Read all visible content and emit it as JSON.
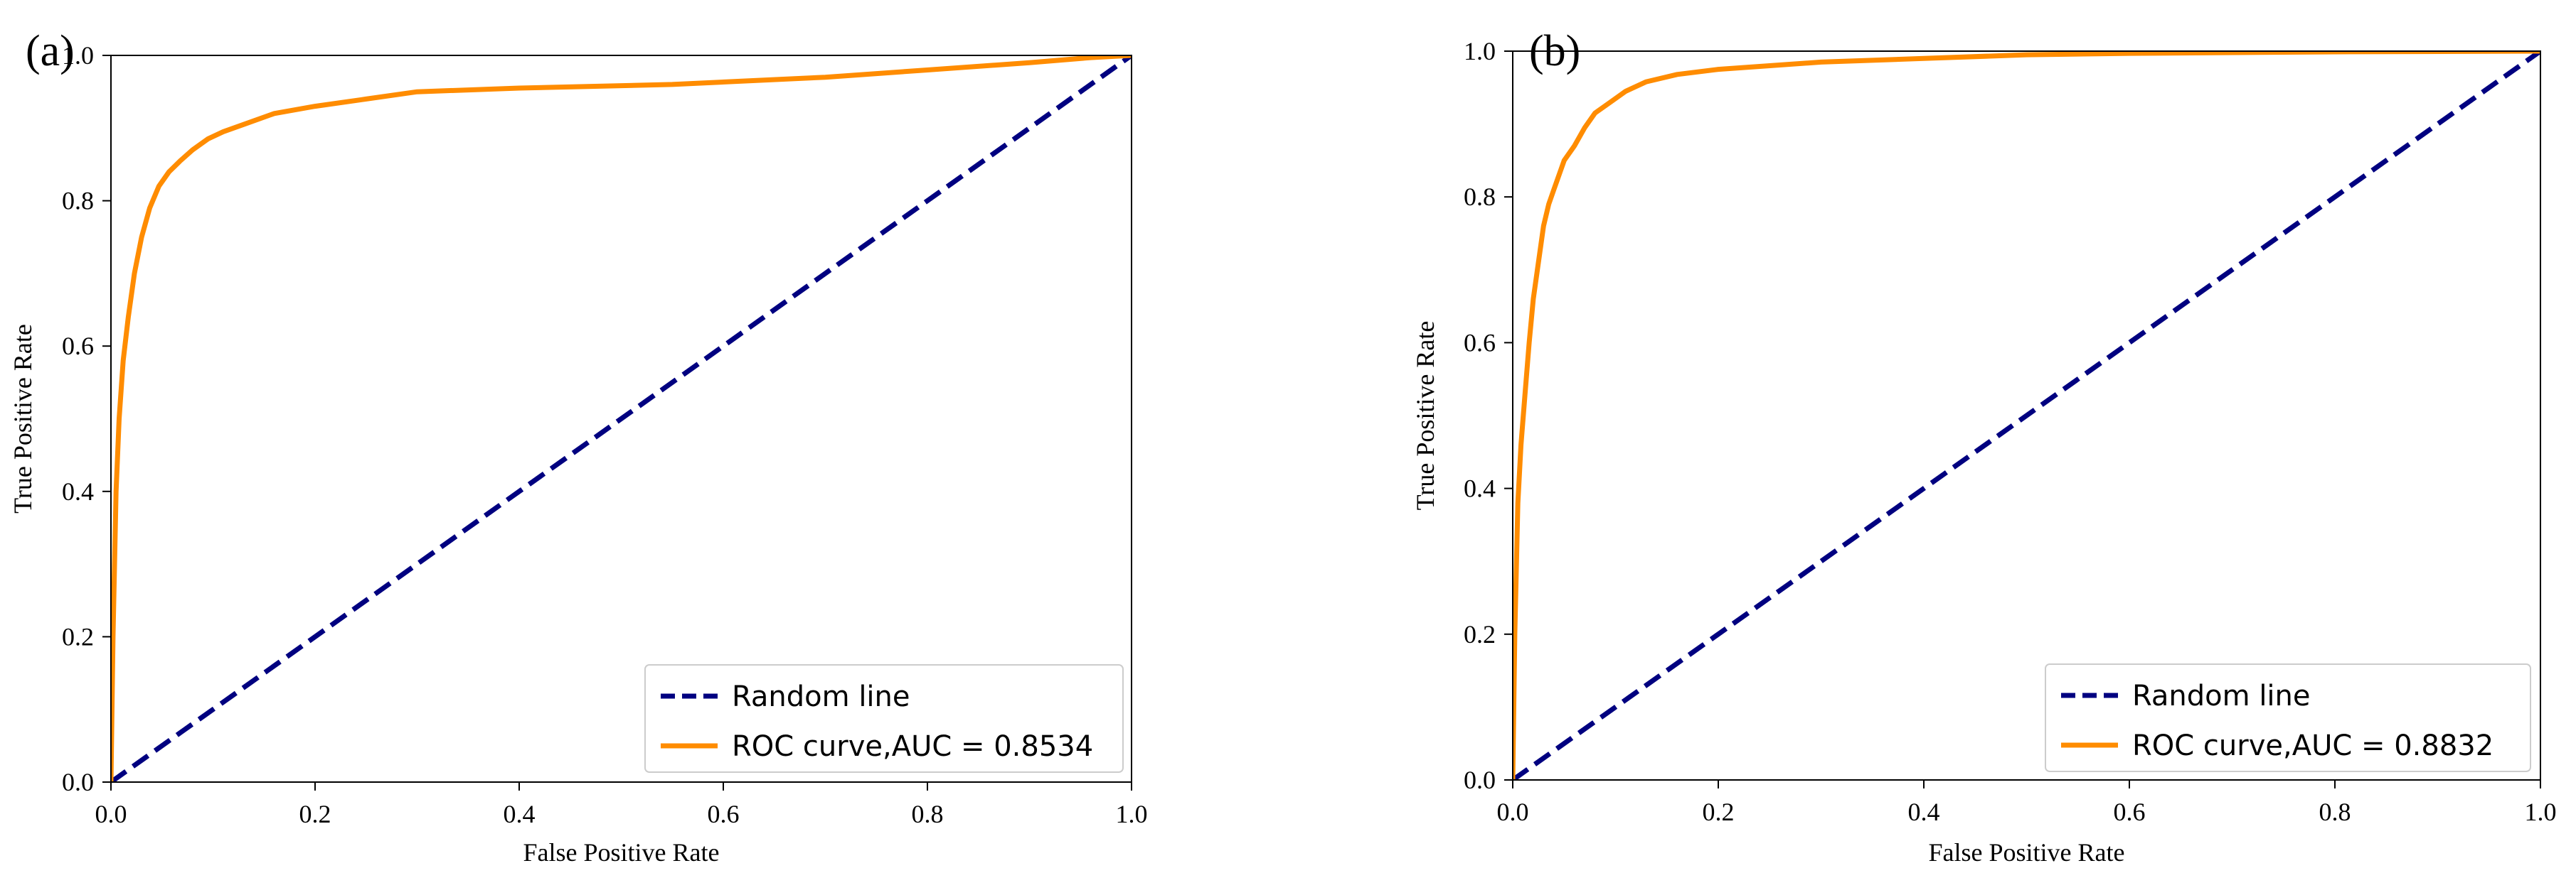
{
  "chart_data": [
    {
      "type": "line",
      "panel_label": "(a)",
      "title": "",
      "xlabel": "False Positive Rate",
      "ylabel": "True Positive Rate",
      "xlim": [
        0.0,
        1.0
      ],
      "ylim": [
        0.0,
        1.0
      ],
      "xticks": [
        0.0,
        0.2,
        0.4,
        0.6,
        0.8,
        1.0
      ],
      "yticks": [
        0.0,
        0.2,
        0.4,
        0.6,
        0.8,
        1.0
      ],
      "xtick_labels": [
        "0.0",
        "0.2",
        "0.4",
        "0.6",
        "0.8",
        "1.0"
      ],
      "ytick_labels": [
        "0.0",
        "0.2",
        "0.4",
        "0.6",
        "0.8",
        "1.0"
      ],
      "grid": false,
      "legend_position": "bottom-right",
      "series": [
        {
          "name": "Random line",
          "color": "#000080",
          "style": "dashed",
          "x": [
            0.0,
            1.0
          ],
          "y": [
            0.0,
            1.0
          ]
        },
        {
          "name": "ROC curve,AUC = 0.8534",
          "color": "#ff8c00",
          "style": "solid",
          "x": [
            0.0,
            0.002,
            0.005,
            0.008,
            0.012,
            0.017,
            0.023,
            0.03,
            0.038,
            0.047,
            0.057,
            0.068,
            0.08,
            0.095,
            0.11,
            0.13,
            0.16,
            0.2,
            0.25,
            0.3,
            0.4,
            0.55,
            0.7,
            0.8,
            0.9,
            0.96,
            1.0
          ],
          "y": [
            0.0,
            0.2,
            0.4,
            0.5,
            0.58,
            0.64,
            0.7,
            0.75,
            0.79,
            0.82,
            0.84,
            0.855,
            0.87,
            0.885,
            0.895,
            0.905,
            0.92,
            0.93,
            0.94,
            0.95,
            0.955,
            0.96,
            0.97,
            0.98,
            0.99,
            0.997,
            1.0
          ]
        }
      ]
    },
    {
      "type": "line",
      "panel_label": "(b)",
      "title": "",
      "xlabel": "False Positive Rate",
      "ylabel": "True Positive Rate",
      "xlim": [
        0.0,
        1.0
      ],
      "ylim": [
        0.0,
        1.0
      ],
      "xticks": [
        0.0,
        0.2,
        0.4,
        0.6,
        0.8,
        1.0
      ],
      "yticks": [
        0.0,
        0.2,
        0.4,
        0.6,
        0.8,
        1.0
      ],
      "xtick_labels": [
        "0.0",
        "0.2",
        "0.4",
        "0.6",
        "0.8",
        "1.0"
      ],
      "ytick_labels": [
        "0.0",
        "0.2",
        "0.4",
        "0.6",
        "0.8",
        "1.0"
      ],
      "grid": false,
      "legend_position": "bottom-right",
      "series": [
        {
          "name": "Random line",
          "color": "#000080",
          "style": "dashed",
          "x": [
            0.0,
            1.0
          ],
          "y": [
            0.0,
            1.0
          ]
        },
        {
          "name": "ROC curve,AUC = 0.8832",
          "color": "#ff8c00",
          "style": "solid",
          "x": [
            0.0,
            0.002,
            0.005,
            0.008,
            0.012,
            0.016,
            0.02,
            0.025,
            0.03,
            0.035,
            0.04,
            0.05,
            0.06,
            0.07,
            0.08,
            0.095,
            0.11,
            0.13,
            0.16,
            0.2,
            0.25,
            0.3,
            0.4,
            0.5,
            0.6,
            0.8,
            1.0
          ],
          "y": [
            0.0,
            0.2,
            0.38,
            0.46,
            0.53,
            0.6,
            0.66,
            0.71,
            0.76,
            0.79,
            0.81,
            0.85,
            0.87,
            0.895,
            0.915,
            0.93,
            0.945,
            0.958,
            0.968,
            0.975,
            0.98,
            0.985,
            0.99,
            0.995,
            0.997,
            0.999,
            1.0
          ]
        }
      ]
    }
  ]
}
